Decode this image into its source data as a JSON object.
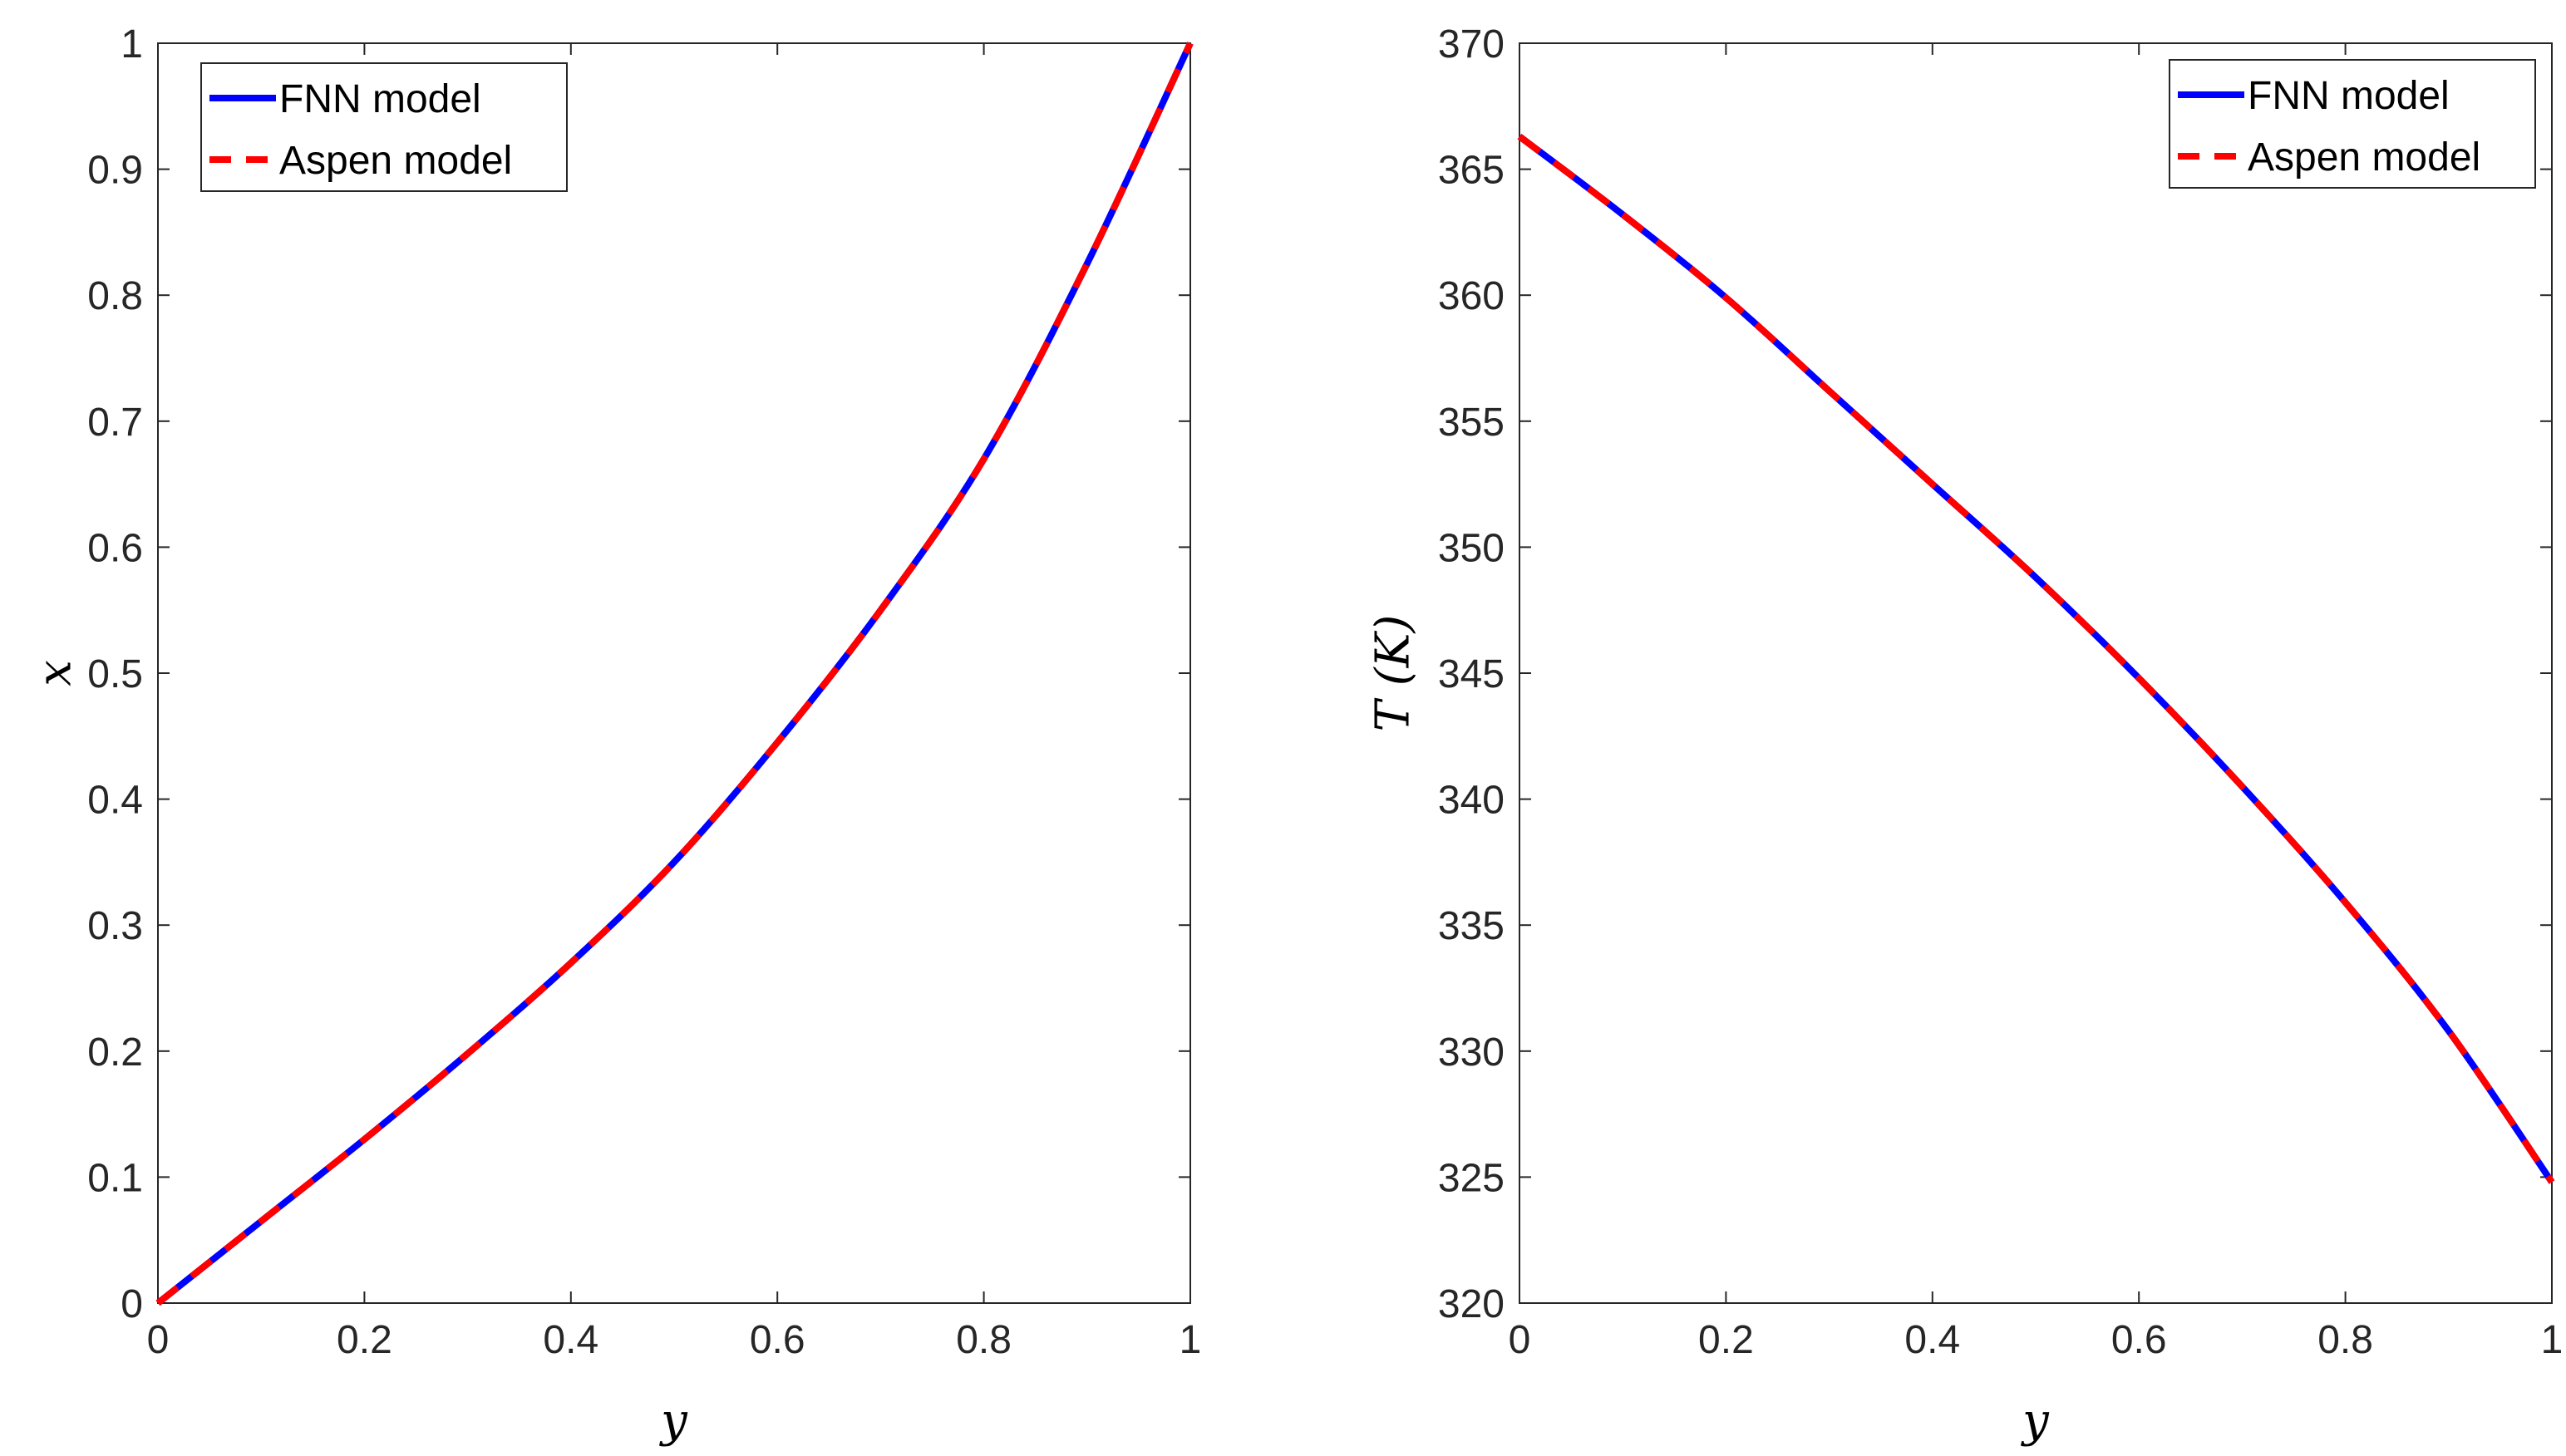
{
  "chart_data": [
    {
      "type": "line",
      "xlabel": "y",
      "ylabel": "x",
      "xlim": [
        0,
        1
      ],
      "ylim": [
        0,
        1
      ],
      "xticks": [
        "0",
        "0.2",
        "0.4",
        "0.6",
        "0.8",
        "1"
      ],
      "yticks": [
        "0",
        "0.1",
        "0.2",
        "0.3",
        "0.4",
        "0.5",
        "0.6",
        "0.7",
        "0.8",
        "0.9",
        "1"
      ],
      "grid": false,
      "legend_position": "top-left",
      "x": [
        0,
        0.1,
        0.2,
        0.3,
        0.4,
        0.5,
        0.6,
        0.7,
        0.8,
        0.9,
        1.0
      ],
      "series": [
        {
          "name": "FNN model",
          "color": "#0000ff",
          "style": "solid",
          "values": [
            0,
            0.065,
            0.13,
            0.198,
            0.27,
            0.35,
            0.445,
            0.55,
            0.67,
            0.825,
            1.0
          ]
        },
        {
          "name": "Aspen model",
          "color": "#ff0000",
          "style": "dashed",
          "values": [
            0,
            0.065,
            0.13,
            0.198,
            0.27,
            0.35,
            0.445,
            0.55,
            0.67,
            0.825,
            1.0
          ]
        }
      ]
    },
    {
      "type": "line",
      "xlabel": "y",
      "ylabel": "T (K)",
      "xlim": [
        0,
        1
      ],
      "ylim": [
        320,
        370
      ],
      "xticks": [
        "0",
        "0.2",
        "0.4",
        "0.6",
        "0.8",
        "1"
      ],
      "yticks": [
        "320",
        "325",
        "330",
        "335",
        "340",
        "345",
        "350",
        "355",
        "360",
        "365",
        "370"
      ],
      "grid": false,
      "legend_position": "top-right",
      "x": [
        0,
        0.1,
        0.2,
        0.3,
        0.4,
        0.5,
        0.6,
        0.7,
        0.8,
        0.9,
        1.0
      ],
      "series": [
        {
          "name": "FNN model",
          "color": "#0000ff",
          "style": "solid",
          "values": [
            366.3,
            363.2,
            359.9,
            356.2,
            352.5,
            348.8,
            344.8,
            340.5,
            335.9,
            330.8,
            324.8
          ]
        },
        {
          "name": "Aspen model",
          "color": "#ff0000",
          "style": "dashed",
          "values": [
            366.3,
            363.2,
            359.9,
            356.2,
            352.5,
            348.8,
            344.8,
            340.5,
            335.9,
            330.8,
            324.8
          ]
        }
      ]
    }
  ]
}
